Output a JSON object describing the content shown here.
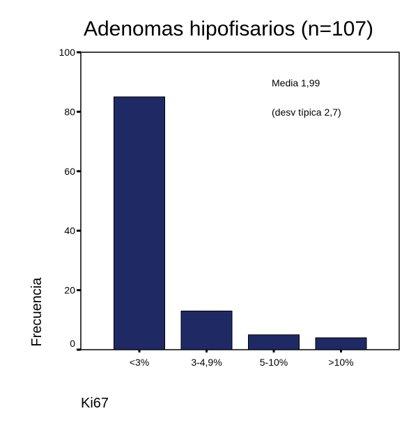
{
  "chart_data": {
    "type": "bar",
    "title": "Adenomas hipofisarios (n=107)",
    "xlabel": "Ki67",
    "ylabel": "Frecuencia",
    "categories": [
      "<3%",
      "3-4,9%",
      "5-10%",
      ">10%"
    ],
    "values": [
      85,
      13,
      5,
      4
    ],
    "ylim": [
      0,
      100
    ],
    "yticks": [
      {
        "value": 0,
        "label": "0"
      },
      {
        "value": 20,
        "label": "20"
      },
      {
        "value": 40,
        "label": "40"
      },
      {
        "value": 60,
        "label": "60"
      },
      {
        "value": 80,
        "label": "80"
      },
      {
        "value": 100,
        "label": "100"
      }
    ],
    "annotations": [
      "Media 1,99",
      "(desv típica 2,7)"
    ],
    "bar_color": "#1f2a64",
    "grid": false,
    "legend": "none"
  }
}
